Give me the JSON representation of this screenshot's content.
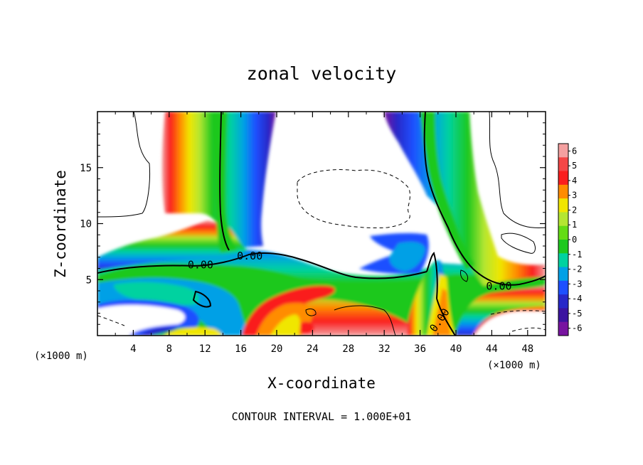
{
  "chart_data": {
    "type": "heatmap",
    "title": "zonal velocity",
    "xlabel": "X-coordinate",
    "ylabel": "Z-coordinate",
    "x_unit_left": "(×1000 m)",
    "x_unit_right": "(×1000 m)",
    "footer": "CONTOUR INTERVAL = 1.000E+01",
    "xlim": [
      0,
      50
    ],
    "ylim": [
      0,
      20
    ],
    "x_ticks": [
      4,
      8,
      12,
      16,
      20,
      24,
      28,
      32,
      36,
      40,
      44,
      48
    ],
    "y_ticks": [
      5,
      10,
      15
    ],
    "colorbar": {
      "levels": [
        6,
        5,
        4,
        3,
        2,
        1,
        0,
        -1,
        -2,
        -3,
        -4,
        -5,
        -6
      ],
      "colors": [
        "#f4a0a0",
        "#f44646",
        "#fa1e1e",
        "#ff8c00",
        "#f0e600",
        "#b4e632",
        "#64dc14",
        "#1ec81e",
        "#00d2a0",
        "#00a0e6",
        "#1e50ff",
        "#2828c8",
        "#3c14a0",
        "#7814a0"
      ]
    },
    "contour_labels": [
      {
        "text": "0.00",
        "x": 11.5,
        "y": 6.0
      },
      {
        "text": "0.00",
        "x": 17.0,
        "y": 6.8
      },
      {
        "text": "0.00",
        "x": 44.8,
        "y": 4.1
      },
      {
        "text": "0.00",
        "x": 38.5,
        "y": 1.2
      }
    ]
  }
}
